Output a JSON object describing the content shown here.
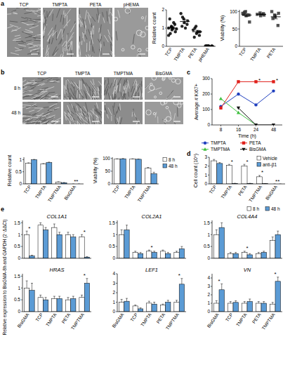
{
  "figure_text": {
    "e_y_label": "Relative expression to BisGMA-8h and GAPDH (2⁻ΔΔCt)"
  },
  "micrographs": [
    {
      "panel": "a",
      "columns": [
        "TCP",
        "TMPTA",
        "PETA",
        "pHEMA"
      ]
    },
    {
      "panel": "b",
      "columns": [
        "TCP",
        "TMPTA",
        "TMPTMA",
        "BisGMA"
      ],
      "rows": [
        "8 h",
        "48 h"
      ]
    }
  ],
  "chart_data": [
    {
      "type": "scatter",
      "y_label": "Relative count",
      "categories": [
        "TCP",
        "TMPTA",
        "PETA",
        "pHEMA"
      ],
      "values": [
        [
          1.0,
          1.1,
          0.9,
          1.2,
          0.8,
          1.5,
          0.7,
          1.0,
          1.3,
          0.95,
          0.6,
          1.05
        ],
        [
          1.8,
          1.5,
          1.3,
          1.2,
          1.4,
          1.1,
          1.6,
          1.0
        ],
        [
          0.9,
          1.1,
          0.7,
          0.6,
          0.8,
          0.5,
          1.0,
          0.8
        ],
        [
          0.02,
          0.03,
          0.01,
          0.02,
          0.01,
          0.03
        ]
      ],
      "means": [
        1.0,
        1.36,
        0.8,
        0.02
      ],
      "errors": [
        0.08,
        0.1,
        0.08,
        0.01
      ],
      "ylim": [
        0,
        2
      ],
      "yticks": [
        0,
        1,
        2
      ],
      "marker": "circle",
      "color": "#000000"
    },
    {
      "type": "scatter",
      "y_label": "Viability (%)",
      "categories": [
        "TCP",
        "TMPTA",
        "PETA"
      ],
      "values": [
        [
          95,
          100,
          88,
          90,
          70,
          92,
          98
        ],
        [
          92,
          96,
          88,
          94,
          90
        ],
        [
          100,
          90,
          85,
          60,
          95,
          80
        ]
      ],
      "means": [
        90,
        92,
        85
      ],
      "errors": [
        4,
        2,
        6
      ],
      "ylim": [
        0,
        105
      ],
      "yticks": [
        0,
        50,
        100
      ],
      "marker": "square",
      "color": "#333333"
    },
    {
      "type": "bar",
      "y_label": "Relative count",
      "categories": [
        "TCP",
        "TMPTA",
        "TMPTMA",
        "BisGMA"
      ],
      "series": [
        {
          "color": "#ffffff",
          "values": [
            0.85,
            0.82,
            0.08,
            0
          ],
          "errors": [
            0.02,
            0.02,
            0.01,
            0
          ]
        },
        {
          "color": "#5b9bd5",
          "values": [
            1.0,
            0.88,
            0.05,
            0
          ],
          "errors": [
            0.01,
            0.02,
            0.01,
            0
          ]
        }
      ],
      "annotations": [
        {
          "text": "**",
          "at": 3
        }
      ],
      "ylim": [
        0,
        1.1
      ],
      "yticks": [
        0,
        0.5,
        1
      ]
    },
    {
      "type": "bar",
      "y_label": "Viability (%)",
      "categories": [
        "TCP",
        "TMPTA",
        "TMPTMA"
      ],
      "series": [
        {
          "name": "8 h",
          "color": "#ffffff",
          "values": [
            98,
            98,
            62
          ],
          "errors": [
            1,
            1,
            3
          ]
        },
        {
          "name": "48 h",
          "color": "#5b9bd5",
          "values": [
            99,
            97,
            40
          ],
          "errors": [
            1,
            1,
            6
          ]
        }
      ],
      "ylim": [
        0,
        105
      ],
      "yticks": [
        0,
        50,
        100
      ],
      "legend": "right"
    },
    {
      "type": "line",
      "panel": "c",
      "y_label": "Average # Ki67+",
      "x_label": "Time (h)",
      "categories": [
        "8",
        "16",
        "24",
        "48"
      ],
      "series": [
        {
          "name": "TMPTA",
          "color": "#1f3fbf",
          "marker": "circle",
          "values": [
            120,
            200,
            130,
            220
          ]
        },
        {
          "name": "PETA",
          "color": "#e0201b",
          "marker": "square",
          "values": [
            110,
            280,
            280,
            280
          ]
        },
        {
          "name": "TMPTMA",
          "color": "#3fbf3f",
          "marker": "triangle",
          "values": [
            170,
            80,
            0,
            null
          ]
        },
        {
          "name": "BisGMA",
          "color": "#111111",
          "marker": "triangle-down",
          "values": [
            null,
            110,
            0,
            0
          ]
        }
      ],
      "annotations": [
        {
          "text": "*",
          "at": 2
        },
        {
          "text": "*",
          "at": 3
        }
      ],
      "ylim": [
        0,
        300
      ],
      "yticks": [
        0,
        100,
        200,
        300
      ],
      "legend": "bottom"
    },
    {
      "type": "bar",
      "panel": "d",
      "y_label": "Cell count (10⁶)",
      "categories": [
        "TCP",
        "TMPTA",
        "PETA",
        "TMPTMA",
        "BisGMA"
      ],
      "series": [
        {
          "name": "Vehicle",
          "color": "#ffffff",
          "values": [
            2.6,
            2.1,
            2.0,
            0.8,
            0
          ],
          "errors": [
            0.15,
            0.1,
            0.2,
            0.15,
            0
          ]
        },
        {
          "name": "anti-β1",
          "color": "#5b9bd5",
          "values": [
            2.3,
            0.05,
            0.05,
            0.02,
            0
          ],
          "errors": [
            0.1,
            0.02,
            0.02,
            0.01,
            0
          ]
        }
      ],
      "annotations": [
        {
          "text": "*",
          "at": 1
        },
        {
          "text": "*",
          "at": 2
        },
        {
          "text": "*",
          "at": 3
        },
        {
          "text": "**",
          "at": 4
        }
      ],
      "ylim": [
        0,
        3
      ],
      "yticks": [
        0,
        1,
        2,
        3
      ],
      "legend": "upper right"
    },
    {
      "type": "bar",
      "panel": "e",
      "title": "COL1A1",
      "categories": [
        "BisGMA",
        "TCP",
        "TMPTA",
        "PETA",
        "TMPTMA"
      ],
      "series": [
        {
          "color": "#ffffff",
          "values": [
            1.0,
            1.4,
            1.3,
            1.0,
            0.9
          ],
          "errors": [
            0.15,
            0.1,
            0.15,
            0.1,
            0.1
          ]
        },
        {
          "color": "#5b9bd5",
          "values": [
            0.1,
            1.2,
            1.0,
            0.9,
            0.05
          ],
          "errors": [
            0.03,
            0.1,
            0.1,
            0.1,
            0.02
          ]
        }
      ],
      "annotations": [
        {
          "text": "*",
          "at": 0
        },
        {
          "text": "*",
          "at": 4
        }
      ],
      "ylim": [
        0,
        1.6
      ],
      "yticks": [
        0,
        0.5,
        1,
        1.5
      ],
      "tick_labels": "y"
    },
    {
      "type": "bar",
      "title": "COL2A1",
      "categories": [
        "BisGMA",
        "TCP",
        "TMPTA",
        "PETA",
        "TMPTMA"
      ],
      "series": [
        {
          "color": "#ffffff",
          "values": [
            1.0,
            0.25,
            0.3,
            0.3,
            0.25
          ],
          "errors": [
            0.2,
            0.05,
            0.05,
            0.05,
            0.05
          ]
        },
        {
          "color": "#5b9bd5",
          "values": [
            1.2,
            0.2,
            0.25,
            0.2,
            0.4
          ],
          "errors": [
            0.2,
            0.05,
            0.05,
            0.05,
            0.1
          ]
        }
      ],
      "annotations": [
        {
          "text": "*",
          "at": 2
        }
      ],
      "ylim": [
        0,
        1.6
      ],
      "yticks": [
        0,
        0.5,
        1,
        1.5
      ],
      "tick_labels": "y"
    },
    {
      "type": "bar",
      "title": "COL4A4",
      "categories": [
        "BisGMA",
        "TCP",
        "TMPTA",
        "PETA",
        "TMPTMA"
      ],
      "series": [
        {
          "name": "8 h",
          "color": "#ffffff",
          "values": [
            1.0,
            0.2,
            0.25,
            0.2,
            0.75
          ],
          "errors": [
            0.2,
            0.05,
            0.05,
            0.05,
            0.15
          ]
        },
        {
          "name": "48 h",
          "color": "#5b9bd5",
          "values": [
            1.3,
            0.2,
            0.15,
            0.25,
            1.0
          ],
          "errors": [
            0.2,
            0.05,
            0.05,
            0.05,
            0.15
          ]
        }
      ],
      "annotations": [
        {
          "text": "*",
          "at": 2
        }
      ],
      "ylim": [
        0,
        1.6
      ],
      "yticks": [
        0,
        0.5,
        1,
        1.5
      ],
      "tick_labels": "y",
      "legend": "top"
    },
    {
      "type": "bar",
      "title": "HRAS",
      "categories": [
        "BisGMA",
        "TCP",
        "TMPTA",
        "PETA",
        "TMPTMA"
      ],
      "series": [
        {
          "color": "#ffffff",
          "values": [
            1.0,
            0.6,
            0.55,
            0.5,
            0.6
          ],
          "errors": [
            0.3,
            0.1,
            0.1,
            0.1,
            0.1
          ]
        },
        {
          "color": "#5b9bd5",
          "values": [
            0.9,
            0.5,
            0.55,
            0.55,
            1.2
          ],
          "errors": [
            0.3,
            0.1,
            0.1,
            0.1,
            0.2
          ]
        }
      ],
      "annotations": [
        {
          "text": "*",
          "at": 4
        }
      ],
      "ylim": [
        0,
        1.6
      ],
      "yticks": [
        0,
        0.5,
        1,
        1.5
      ]
    },
    {
      "type": "bar",
      "title": "LEF1",
      "categories": [
        "BisGMA",
        "TCP",
        "TMPTA",
        "PETA",
        "TMPTMA"
      ],
      "series": [
        {
          "color": "#ffffff",
          "values": [
            1.0,
            0.6,
            0.9,
            0.7,
            1.0
          ],
          "errors": [
            0.3,
            0.1,
            0.2,
            0.1,
            0.2
          ]
        },
        {
          "color": "#5b9bd5",
          "values": [
            1.1,
            0.3,
            0.8,
            1.0,
            2.9
          ],
          "errors": [
            0.3,
            0.1,
            0.2,
            0.2,
            0.6
          ]
        }
      ],
      "annotations": [
        {
          "text": "*",
          "at": 4
        }
      ],
      "ylim": [
        0,
        4
      ],
      "yticks": [
        0,
        1,
        2,
        3,
        4
      ]
    },
    {
      "type": "bar",
      "title": "VN",
      "categories": [
        "BisGMA",
        "TCP",
        "TMPTA",
        "PETA",
        "TMPTMA"
      ],
      "series": [
        {
          "color": "#ffffff",
          "values": [
            1.0,
            1.0,
            1.0,
            1.0,
            0.9
          ],
          "errors": [
            0.3,
            0.2,
            0.2,
            0.2,
            0.2
          ]
        },
        {
          "color": "#5b9bd5",
          "values": [
            2.6,
            1.1,
            1.2,
            1.0,
            3.6
          ],
          "errors": [
            0.7,
            0.2,
            0.3,
            0.2,
            0.5
          ]
        }
      ],
      "annotations": [
        {
          "text": "*",
          "at": 0
        },
        {
          "text": "*",
          "at": 4
        }
      ],
      "ylim": [
        0,
        4.5
      ],
      "yticks": [
        0,
        1,
        2,
        3,
        4
      ]
    }
  ]
}
